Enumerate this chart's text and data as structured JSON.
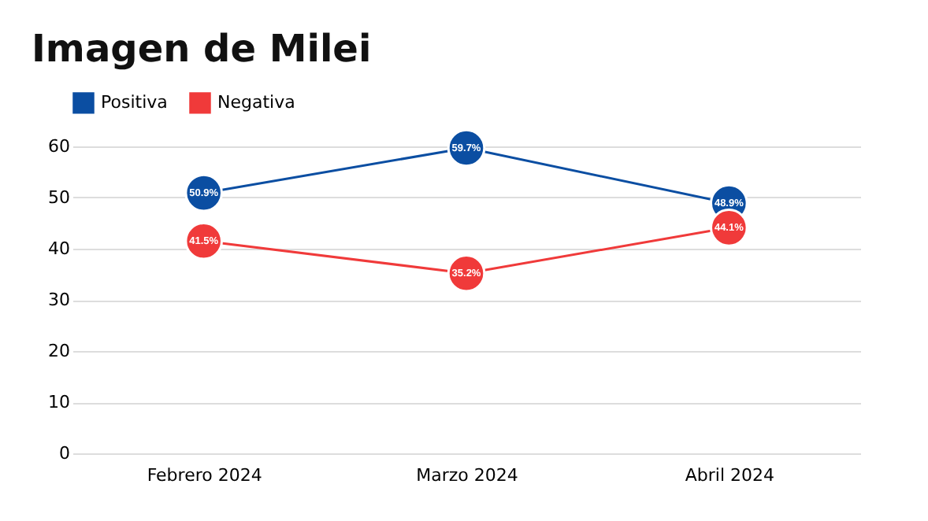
{
  "chart_data": {
    "type": "line",
    "title": "Imagen de Milei",
    "categories": [
      "Febrero 2024",
      "Marzo 2024",
      "Abril 2024"
    ],
    "series": [
      {
        "name": "Positiva",
        "color": "#0b4ea2",
        "values": [
          50.9,
          59.7,
          48.9
        ],
        "value_labels": [
          "50.9%",
          "59.7%",
          "48.9%"
        ]
      },
      {
        "name": "Negativa",
        "color": "#f03a3a",
        "values": [
          41.5,
          35.2,
          44.1
        ],
        "value_labels": [
          "41.5%",
          "35.2%",
          "44.1%"
        ]
      }
    ],
    "ylim": [
      0,
      60
    ],
    "yticks": [
      0,
      10,
      20,
      30,
      40,
      50,
      60
    ],
    "grid": "y",
    "legend": "top",
    "marker": "circle",
    "line_style": "solid"
  }
}
